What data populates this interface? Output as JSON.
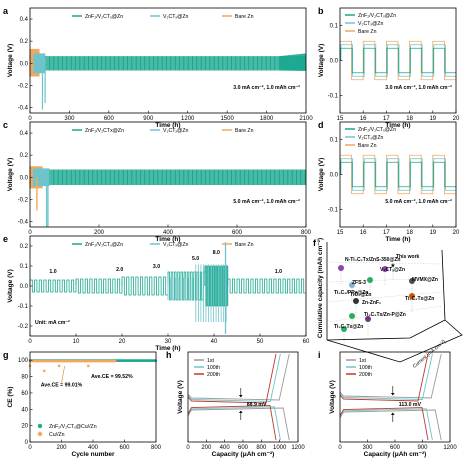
{
  "colors": {
    "znf2": "#1aa88f",
    "v2ct": "#6fc4cc",
    "bare": "#f0a860",
    "gray": "#9a9a9a",
    "red": "#c0392b",
    "darkgray": "#555555"
  },
  "legend": {
    "znf2": "ZnF₂/V₂CTₓ@Zn",
    "v2ct": "V₂CTₓ@Zn",
    "bare": "Bare Zn",
    "znf2_c": "ZnF₂/V₂CTx@Zn",
    "g1": "ZnF₂/V₂CTₓ@Cu//Zn",
    "g2": "Cu//Zn",
    "h1": "1st",
    "h2": "100th",
    "h3": "200th"
  },
  "axes": {
    "voltage": "Voltage (V)",
    "time": "Time (h)",
    "ce": "CE (%)",
    "cycle": "Cycle number",
    "capacity": "Capacity (μAh cm⁻²)",
    "cum": "Cumulative capacity (mAh cm⁻²)",
    "current": "Current (mA cm⁻²)"
  },
  "panels": {
    "a": {
      "label": "a",
      "cond": "3.0 mA cm⁻², 1.0 mAh cm⁻²",
      "xticks": [
        "0",
        "300",
        "600",
        "900",
        "1200",
        "1500",
        "1800",
        "2100"
      ],
      "yticks": [
        "0.4",
        "0.2",
        "0.0",
        "-0.2",
        "-0.4"
      ]
    },
    "b": {
      "label": "b",
      "cond": "3.0 mA cm⁻², 1.0 mAh cm⁻²",
      "xticks": [
        "15",
        "16",
        "17",
        "18",
        "19",
        "20"
      ],
      "yticks": [
        "0.1",
        "0.0",
        "-0.1"
      ]
    },
    "c": {
      "label": "c",
      "cond": "5.0 mA cm⁻², 1.0 mAh cm⁻²",
      "xticks": [
        "0",
        "200",
        "400",
        "600",
        "800"
      ],
      "yticks": [
        "0.4",
        "0.2",
        "0.0",
        "-0.2",
        "-0.4"
      ]
    },
    "d": {
      "label": "d",
      "cond": "5.0 mA cm⁻², 1.0 mAh cm⁻²",
      "xticks": [
        "15",
        "16",
        "17",
        "18",
        "19",
        "20"
      ],
      "yticks": [
        "0.1",
        "0.0",
        "-0.1"
      ]
    },
    "e": {
      "label": "e",
      "cond": "Unit: mA cm⁻²",
      "xticks": [
        "0",
        "10",
        "20",
        "30",
        "40",
        "50",
        "60"
      ],
      "yticks": [
        "0.2",
        "0.1",
        "0.0",
        "-0.1",
        "-0.2"
      ],
      "rates": [
        "1.0",
        "2.0",
        "3.0",
        "5.0",
        "8.0",
        "1.0"
      ]
    },
    "f": {
      "label": "f",
      "items": [
        "This work",
        "V₂CTₓ@Zn",
        "MVMX@Zn",
        "ZFS-3",
        "Ti₃C₂Tx@Zn",
        "N-Ti₃C₂Tx/ZnS-350@Zn",
        "Ti₃C₂/PPy@Zn",
        "Zn-ZnF₂",
        "Ti₃C₂Tx/Zn-P@Zn",
        "TiO₂@Zn",
        "Ti₃C₂Tx@Zn"
      ]
    },
    "g": {
      "label": "g",
      "xticks": [
        "0",
        "200",
        "400",
        "600",
        "800"
      ],
      "yticks": [
        "0",
        "20",
        "40",
        "60",
        "80",
        "100"
      ],
      "ce1": "Ave.CE = 99.52%",
      "ce2": "Ave.CE = 99.01%"
    },
    "h": {
      "label": "h",
      "xticks": [
        "0",
        "200",
        "400",
        "600",
        "800",
        "1000",
        "1200"
      ],
      "ann": "88.9 mV"
    },
    "i": {
      "label": "i",
      "xticks": [
        "0",
        "300",
        "600",
        "900",
        "1200"
      ],
      "ann": "113.0 mV"
    }
  },
  "chart_data": [
    {
      "type": "line",
      "panel": "a",
      "xlabel": "Time (h)",
      "ylabel": "Voltage (V)",
      "xlim": [
        0,
        2100
      ],
      "ylim": [
        -0.45,
        0.5
      ],
      "series": [
        {
          "name": "ZnF₂/V₂CTₓ@Zn",
          "envelope": [
            [
              0,
              0.06
            ],
            [
              900,
              0.06
            ],
            [
              1800,
              0.07
            ],
            [
              2050,
              0.09
            ],
            [
              2100,
              0.08
            ]
          ]
        },
        {
          "name": "V₂CTₓ@Zn",
          "fail_time": 110,
          "spike": -0.42
        },
        {
          "name": "Bare Zn",
          "fail_time": 60,
          "spike": 0.1
        }
      ]
    },
    {
      "type": "line",
      "panel": "b",
      "xlabel": "Time (h)",
      "ylabel": "Voltage (V)",
      "xlim": [
        15,
        20
      ],
      "ylim": [
        -0.15,
        0.15
      ]
    },
    {
      "type": "line",
      "panel": "c",
      "xlabel": "Time (h)",
      "ylabel": "Voltage (V)",
      "xlim": [
        0,
        800
      ],
      "ylim": [
        -0.45,
        0.5
      ],
      "series": [
        {
          "name": "ZnF₂/V₂CTx@Zn",
          "envelope": [
            [
              0,
              0.07
            ],
            [
              400,
              0.06
            ],
            [
              800,
              0.08
            ]
          ]
        },
        {
          "name": "V₂CTₓ@Zn",
          "fail_time": 50,
          "spike": -0.45
        },
        {
          "name": "Bare Zn",
          "fail_time": 30,
          "spike": -0.3
        }
      ]
    },
    {
      "type": "line",
      "panel": "d",
      "xlabel": "Time (h)",
      "ylabel": "Voltage (V)",
      "xlim": [
        15,
        20
      ],
      "ylim": [
        -0.15,
        0.15
      ]
    },
    {
      "type": "line",
      "panel": "e",
      "xlabel": "Time (h)",
      "ylabel": "Voltage (V)",
      "xlim": [
        0,
        60
      ],
      "ylim": [
        -0.25,
        0.25
      ],
      "rates": [
        1.0,
        2.0,
        3.0,
        5.0,
        8.0,
        1.0
      ]
    },
    {
      "type": "scatter",
      "panel": "f",
      "points": [
        {
          "label": "This work",
          "cum": 1050
        },
        {
          "label": "V₂CTₓ@Zn",
          "cum": 800
        },
        {
          "label": "MVMX@Zn",
          "cum": 750
        }
      ]
    },
    {
      "type": "scatter",
      "panel": "g",
      "xlabel": "Cycle number",
      "ylabel": "CE (%)",
      "xlim": [
        0,
        800
      ],
      "ylim": [
        0,
        110
      ],
      "series": [
        {
          "name": "ZnF₂/V₂CTₓ@Cu//Zn",
          "ave": 99.52,
          "cycles": 800
        },
        {
          "name": "Cu//Zn",
          "ave": 99.01,
          "cycles": 540
        }
      ]
    },
    {
      "type": "line",
      "panel": "h",
      "xlabel": "Capacity (μAh cm⁻²)",
      "ylabel": "Voltage (V)",
      "xlim": [
        0,
        1250
      ],
      "series": [
        {
          "name": "1st"
        },
        {
          "name": "100th"
        },
        {
          "name": "200th"
        }
      ],
      "overpotential_mV": 88.9
    },
    {
      "type": "line",
      "panel": "i",
      "xlabel": "Capacity (μAh cm⁻²)",
      "ylabel": "Voltage (V)",
      "xlim": [
        0,
        1250
      ],
      "series": [
        {
          "name": "1st"
        },
        {
          "name": "100th"
        },
        {
          "name": "200th"
        }
      ],
      "overpotential_mV": 113.0
    }
  ]
}
